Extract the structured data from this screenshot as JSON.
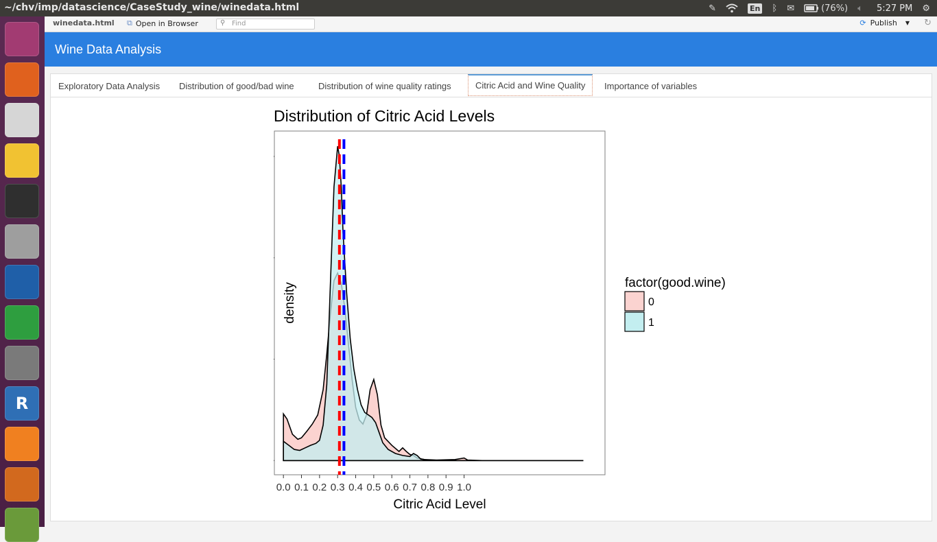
{
  "window": {
    "title": "~/chv/imp/datascience/CaseStudy_wine/winedata.html"
  },
  "tray": {
    "lang": "En",
    "battery": "(76%)",
    "time": "5:27 PM"
  },
  "launcher": {
    "items": [
      {
        "name": "ubuntu-dash-icon",
        "color": "#a23b72"
      },
      {
        "name": "firefox-icon",
        "color": "#e0611e"
      },
      {
        "name": "chrome-icon",
        "color": "#d6d6d6"
      },
      {
        "name": "text-editor-icon",
        "color": "#f1c232"
      },
      {
        "name": "terminal-icon",
        "color": "#2f2f2f"
      },
      {
        "name": "files-icon",
        "color": "#9e9e9e"
      },
      {
        "name": "writer-icon",
        "color": "#1f5fa8"
      },
      {
        "name": "calc-icon",
        "color": "#2e9e3f"
      },
      {
        "name": "system-settings-icon",
        "color": "#7a7a7a"
      },
      {
        "name": "rstudio-icon",
        "color": "#2f6fb5",
        "label": "R"
      },
      {
        "name": "vlc-icon",
        "color": "#f08020"
      },
      {
        "name": "software-center-icon",
        "color": "#d2691e"
      },
      {
        "name": "update-icon",
        "color": "#6a9a3a"
      }
    ]
  },
  "viewer": {
    "file": "winedata.html",
    "open_in_browser": "Open in Browser",
    "find_placeholder": "Find",
    "publish": "Publish"
  },
  "app": {
    "title": "Wine Data Analysis"
  },
  "tabs": [
    {
      "label": "Exploratory Data Analysis",
      "active": false
    },
    {
      "label": "Distribution of good/bad wine",
      "active": false
    },
    {
      "label": "Distribution of wine quality ratings",
      "active": false
    },
    {
      "label": "Citric Acid and Wine Quality",
      "active": true
    },
    {
      "label": "Importance of variables",
      "active": false
    }
  ],
  "chart_data": {
    "type": "area",
    "title": "Distribution of Citric Acid Levels",
    "xlabel": "Citric Acid Level",
    "ylabel": "density",
    "xlim": [
      -0.05,
      1.78
    ],
    "ylim": [
      -0.28,
      6.5
    ],
    "x_ticks": [
      0.0,
      0.1,
      0.2,
      0.3,
      0.4,
      0.5,
      0.6,
      0.7,
      0.8,
      0.9,
      1.0
    ],
    "x_tick_labels": [
      "0.0",
      "0.1",
      "0.2",
      "0.3",
      "0.4",
      "0.5",
      "0.6",
      "0.7",
      "0.8",
      "0.9",
      "1.0"
    ],
    "y_ticks": [
      0,
      2,
      4,
      6
    ],
    "legend": {
      "title": "factor(good.wine)",
      "position": "right",
      "entries": [
        "0",
        "1"
      ]
    },
    "series": [
      {
        "name": "0",
        "fill": "#fbd3d0",
        "points": [
          [
            0,
            0
          ],
          [
            0,
            0.92
          ],
          [
            0.02,
            0.82
          ],
          [
            0.05,
            0.52
          ],
          [
            0.08,
            0.42
          ],
          [
            0.1,
            0.45
          ],
          [
            0.13,
            0.58
          ],
          [
            0.16,
            0.72
          ],
          [
            0.19,
            0.9
          ],
          [
            0.22,
            1.4
          ],
          [
            0.24,
            2.1
          ],
          [
            0.26,
            2.9
          ],
          [
            0.28,
            3.55
          ],
          [
            0.3,
            3.7
          ],
          [
            0.32,
            3.5
          ],
          [
            0.34,
            3.0
          ],
          [
            0.36,
            2.3
          ],
          [
            0.38,
            1.6
          ],
          [
            0.4,
            1.05
          ],
          [
            0.42,
            0.8
          ],
          [
            0.44,
            0.72
          ],
          [
            0.46,
            0.9
          ],
          [
            0.48,
            1.4
          ],
          [
            0.5,
            1.6
          ],
          [
            0.52,
            1.3
          ],
          [
            0.54,
            0.7
          ],
          [
            0.56,
            0.45
          ],
          [
            0.6,
            0.3
          ],
          [
            0.64,
            0.18
          ],
          [
            0.66,
            0.25
          ],
          [
            0.68,
            0.18
          ],
          [
            0.7,
            0.12
          ],
          [
            0.72,
            0.1
          ],
          [
            0.74,
            0.05
          ],
          [
            0.78,
            0.02
          ],
          [
            0.85,
            0.01
          ],
          [
            0.95,
            0.02
          ],
          [
            1.0,
            0.05
          ],
          [
            1.02,
            0.01
          ],
          [
            1.1,
            0.0
          ],
          [
            1.3,
            0.0
          ],
          [
            1.66,
            0.0
          ],
          [
            1.66,
            0
          ]
        ]
      },
      {
        "name": "1",
        "fill": "#c3eef0",
        "points": [
          [
            0,
            0
          ],
          [
            0,
            0.38
          ],
          [
            0.03,
            0.3
          ],
          [
            0.06,
            0.22
          ],
          [
            0.09,
            0.2
          ],
          [
            0.12,
            0.25
          ],
          [
            0.15,
            0.3
          ],
          [
            0.18,
            0.34
          ],
          [
            0.2,
            0.4
          ],
          [
            0.22,
            0.7
          ],
          [
            0.24,
            1.5
          ],
          [
            0.26,
            3.5
          ],
          [
            0.28,
            5.4
          ],
          [
            0.3,
            6.2
          ],
          [
            0.31,
            6.0
          ],
          [
            0.32,
            5.4
          ],
          [
            0.33,
            4.5
          ],
          [
            0.35,
            3.3
          ],
          [
            0.37,
            2.4
          ],
          [
            0.39,
            1.8
          ],
          [
            0.41,
            1.4
          ],
          [
            0.43,
            1.1
          ],
          [
            0.45,
            0.95
          ],
          [
            0.47,
            0.9
          ],
          [
            0.49,
            0.85
          ],
          [
            0.51,
            0.75
          ],
          [
            0.53,
            0.55
          ],
          [
            0.55,
            0.35
          ],
          [
            0.58,
            0.22
          ],
          [
            0.62,
            0.14
          ],
          [
            0.66,
            0.1
          ],
          [
            0.7,
            0.08
          ],
          [
            0.72,
            0.14
          ],
          [
            0.74,
            0.1
          ],
          [
            0.76,
            0.03
          ],
          [
            0.8,
            0.01
          ],
          [
            0.9,
            0.0
          ],
          [
            1.1,
            0.0
          ],
          [
            1.66,
            0.0
          ],
          [
            1.66,
            0
          ]
        ]
      }
    ],
    "vlines": [
      {
        "x": 0.31,
        "color": "#ff0000"
      },
      {
        "x": 0.335,
        "color": "#0000ff"
      }
    ]
  }
}
